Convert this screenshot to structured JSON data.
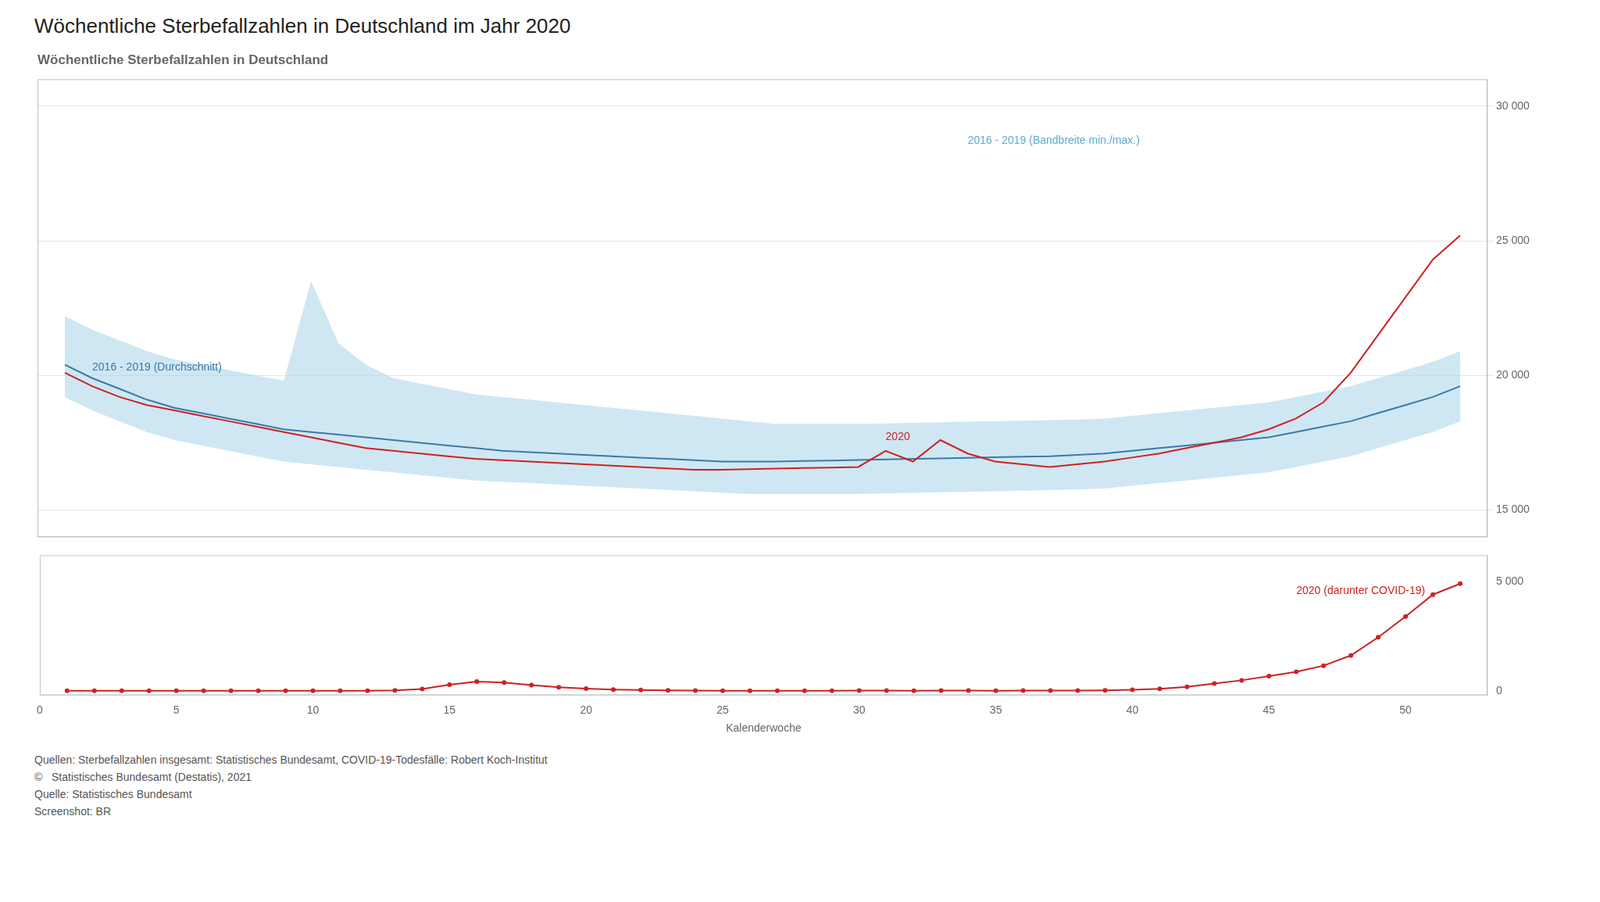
{
  "title": "Wöchentliche Sterbefallzahlen in Deutschland im Jahr 2020",
  "annotations": [
    "Quellen: Sterbefallzahlen insgesamt: Statistisches Bundesamt, COVID-19-Todesfälle: Robert Koch-Institut",
    "©   Statistisches Bundesamt (Destatis), 2021",
    "Quelle: Statistisches Bundesamt",
    "Screenshot: BR"
  ],
  "chart_data": [
    {
      "type": "line",
      "title": "Wöchentliche Sterbefallzahlen in Deutschland",
      "x": [
        1,
        2,
        3,
        4,
        5,
        6,
        7,
        8,
        9,
        10,
        11,
        12,
        13,
        14,
        15,
        16,
        17,
        18,
        19,
        20,
        21,
        22,
        23,
        24,
        25,
        26,
        27,
        28,
        29,
        30,
        31,
        32,
        33,
        34,
        35,
        36,
        37,
        38,
        39,
        40,
        41,
        42,
        43,
        44,
        45,
        46,
        47,
        48,
        49,
        50,
        51,
        52
      ],
      "series": [
        {
          "type": "band",
          "color": "#a8d4e8",
          "lower": [
            19200,
            18700,
            18300,
            17900,
            17600,
            17400,
            17200,
            17000,
            16800,
            16700,
            16600,
            16500,
            16400,
            16300,
            16200,
            16100,
            16050,
            16000,
            15950,
            15900,
            15850,
            15800,
            15750,
            15700,
            15650,
            15600,
            15600,
            15600,
            15600,
            15600,
            15620,
            15640,
            15660,
            15680,
            15700,
            15720,
            15740,
            15760,
            15800,
            15900,
            16000,
            16100,
            16200,
            16300,
            16400,
            16600,
            16800,
            17000,
            17300,
            17600,
            17900,
            18300
          ],
          "upper": [
            22200,
            21700,
            21300,
            20900,
            20600,
            20400,
            20200,
            20000,
            19800,
            23500,
            21200,
            20400,
            19900,
            19700,
            19500,
            19300,
            19200,
            19100,
            19000,
            18900,
            18800,
            18700,
            18600,
            18500,
            18400,
            18300,
            18200,
            18200,
            18200,
            18200,
            18220,
            18240,
            18260,
            18280,
            18300,
            18320,
            18340,
            18360,
            18400,
            18500,
            18600,
            18700,
            18800,
            18900,
            19000,
            19200,
            19400,
            19600,
            19900,
            20200,
            20500,
            20900
          ]
        },
        {
          "color": "#3a7aaa",
          "values": [
            20400,
            19900,
            19500,
            19100,
            18800,
            18600,
            18400,
            18200,
            18000,
            17900,
            17800,
            17700,
            17600,
            17500,
            17400,
            17300,
            17200,
            17150,
            17100,
            17050,
            17000,
            16950,
            16900,
            16850,
            16800,
            16800,
            16800,
            16820,
            16840,
            16860,
            16880,
            16900,
            16920,
            16940,
            16960,
            16980,
            17000,
            17050,
            17100,
            17200,
            17300,
            17400,
            17500,
            17600,
            17700,
            17900,
            18100,
            18300,
            18600,
            18900,
            19200,
            19600
          ]
        },
        {
          "color": "#cc2222",
          "values": [
            20100,
            19600,
            19200,
            18900,
            18700,
            18500,
            18300,
            18100,
            17900,
            17700,
            17500,
            17300,
            17200,
            17100,
            17000,
            16900,
            16850,
            16800,
            16750,
            16700,
            16650,
            16600,
            16550,
            16500,
            16500,
            16520,
            16540,
            16560,
            16580,
            16600,
            17200,
            16800,
            17600,
            17100,
            16800,
            16700,
            16600,
            16700,
            16800,
            16950,
            17100,
            17300,
            17500,
            17700,
            18000,
            18400,
            19000,
            20100,
            21500,
            22900,
            24300,
            25200
          ]
        }
      ],
      "xlim": [
        0,
        53
      ],
      "ylim": [
        14000,
        31000
      ],
      "yticks": [
        {
          "value": 15000,
          "label": "15 000"
        },
        {
          "value": 20000,
          "label": "20 000"
        },
        {
          "value": 25000,
          "label": "25 000"
        },
        {
          "value": 30000,
          "label": "30 000"
        }
      ],
      "grid": true,
      "tick_labels": "y",
      "annotations": [
        {
          "text": "2016 - 2019 (Durchschnitt)",
          "x": 2,
          "y": 20100,
          "color": "#3a7aaa"
        },
        {
          "text": "2016 - 2019 (Bandbreite min./max.)",
          "x": 34,
          "y": 28500,
          "color": "#5aabcc"
        },
        {
          "text": "2020",
          "x": 31,
          "y": 17500,
          "color": "#cc2222"
        }
      ]
    },
    {
      "type": "line",
      "xlabel": "Kalenderwoche",
      "x": [
        1,
        2,
        3,
        4,
        5,
        6,
        7,
        8,
        9,
        10,
        11,
        12,
        13,
        14,
        15,
        16,
        17,
        18,
        19,
        20,
        21,
        22,
        23,
        24,
        25,
        26,
        27,
        28,
        29,
        30,
        31,
        32,
        33,
        34,
        35,
        36,
        37,
        38,
        39,
        40,
        41,
        42,
        43,
        44,
        45,
        46,
        47,
        48,
        49,
        50,
        51,
        52
      ],
      "series": [
        {
          "color": "#cc2222",
          "marker": "circle",
          "values": [
            0,
            0,
            0,
            0,
            0,
            0,
            0,
            0,
            0,
            0,
            0,
            5,
            20,
            80,
            280,
            420,
            380,
            260,
            160,
            100,
            60,
            35,
            22,
            12,
            6,
            4,
            3,
            4,
            6,
            8,
            7,
            5,
            8,
            7,
            5,
            7,
            9,
            12,
            18,
            45,
            95,
            180,
            330,
            480,
            670,
            870,
            1150,
            1620,
            2450,
            3400,
            4400,
            4900
          ]
        }
      ],
      "xlim": [
        0,
        53
      ],
      "xticks": [
        0,
        5,
        10,
        15,
        20,
        25,
        30,
        35,
        40,
        45,
        50
      ],
      "ylim": [
        -200,
        6200
      ],
      "yticks": [
        0,
        {
          "value": 5000,
          "label": "5 000"
        }
      ],
      "grid": false,
      "annotations": [
        {
          "text": "2020 (darunter COVID-19)",
          "x": 46,
          "y": 4300,
          "color": "#cc2222"
        }
      ]
    }
  ]
}
